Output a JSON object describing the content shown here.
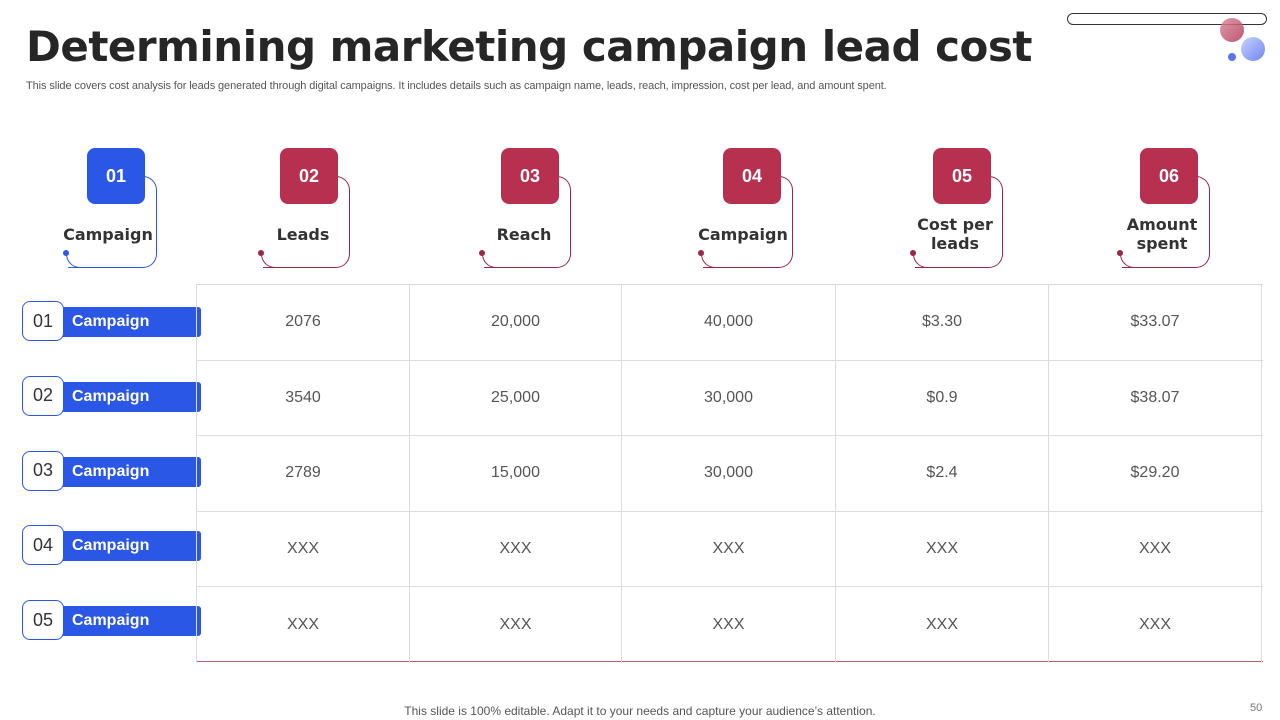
{
  "slide": {
    "title": "Determining marketing campaign lead cost",
    "subtitle": "This slide covers cost analysis for leads generated through digital campaigns. It includes details such as campaign name, leads, reach, impression, cost per lead, and amount spent.",
    "footer": "This slide is 100% editable. Adapt it to your needs and capture your audience’s attention.",
    "page_number": "50"
  },
  "colors": {
    "blue": "#2b57e6",
    "red": "#b8304f",
    "dark_red": "#9b2746"
  },
  "columns": [
    {
      "number": "01",
      "label_lines": [
        "Campaign"
      ],
      "color": "blue"
    },
    {
      "number": "02",
      "label_lines": [
        "Leads"
      ],
      "color": "red"
    },
    {
      "number": "03",
      "label_lines": [
        "Reach"
      ],
      "color": "red"
    },
    {
      "number": "04",
      "label_lines": [
        "Campaign"
      ],
      "color": "red"
    },
    {
      "number": "05",
      "label_lines": [
        "Cost per",
        "leads"
      ],
      "color": "red"
    },
    {
      "number": "06",
      "label_lines": [
        "Amount",
        "spent"
      ],
      "color": "red"
    }
  ],
  "rows": [
    {
      "number": "01",
      "name": "Campaign",
      "values": [
        "2076",
        "20,000",
        "40,000",
        "$3.30",
        "$33.07"
      ]
    },
    {
      "number": "02",
      "name": "Campaign",
      "values": [
        "3540",
        "25,000",
        "30,000",
        "$0.9",
        "$38.07"
      ]
    },
    {
      "number": "03",
      "name": "Campaign",
      "values": [
        "2789",
        "15,000",
        "30,000",
        "$2.4",
        "$29.20"
      ]
    },
    {
      "number": "04",
      "name": "Campaign",
      "values": [
        "XXX",
        "XXX",
        "XXX",
        "XXX",
        "XXX"
      ]
    },
    {
      "number": "05",
      "name": "Campaign",
      "values": [
        "XXX",
        "XXX",
        "XXX",
        "XXX",
        "XXX"
      ]
    }
  ]
}
